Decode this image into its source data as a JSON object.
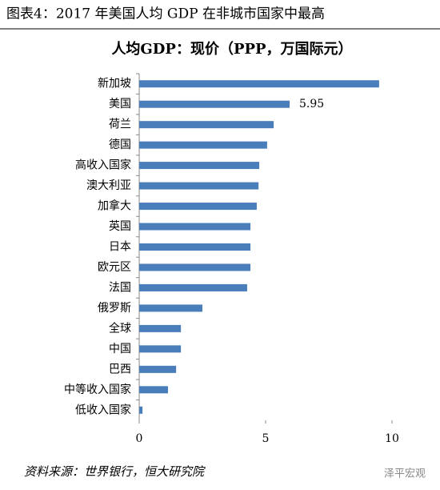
{
  "chart_data": {
    "type": "bar",
    "orientation": "horizontal",
    "title": "图表4：2017 年美国人均 GDP 在非城市国家中最高",
    "subtitle": "人均GDP：现价（PPP，万国际元）",
    "source": "资料来源：世界银行，恒大研究院",
    "watermark": "泽平宏观",
    "categories": [
      "新加坡",
      "美国",
      "荷兰",
      "德国",
      "高收入国家",
      "澳大利亚",
      "加拿大",
      "英国",
      "日本",
      "欧元区",
      "法国",
      "俄罗斯",
      "全球",
      "中国",
      "巴西",
      "中等收入国家",
      "低收入国家"
    ],
    "values": [
      9.49,
      5.95,
      5.32,
      5.06,
      4.75,
      4.72,
      4.65,
      4.4,
      4.4,
      4.4,
      4.27,
      2.5,
      1.65,
      1.65,
      1.46,
      1.14,
      0.13
    ],
    "label_indices": [
      1
    ],
    "color": "#4a7ebb",
    "xlim": [
      0,
      10
    ],
    "xticks": [
      0,
      5,
      10
    ]
  }
}
